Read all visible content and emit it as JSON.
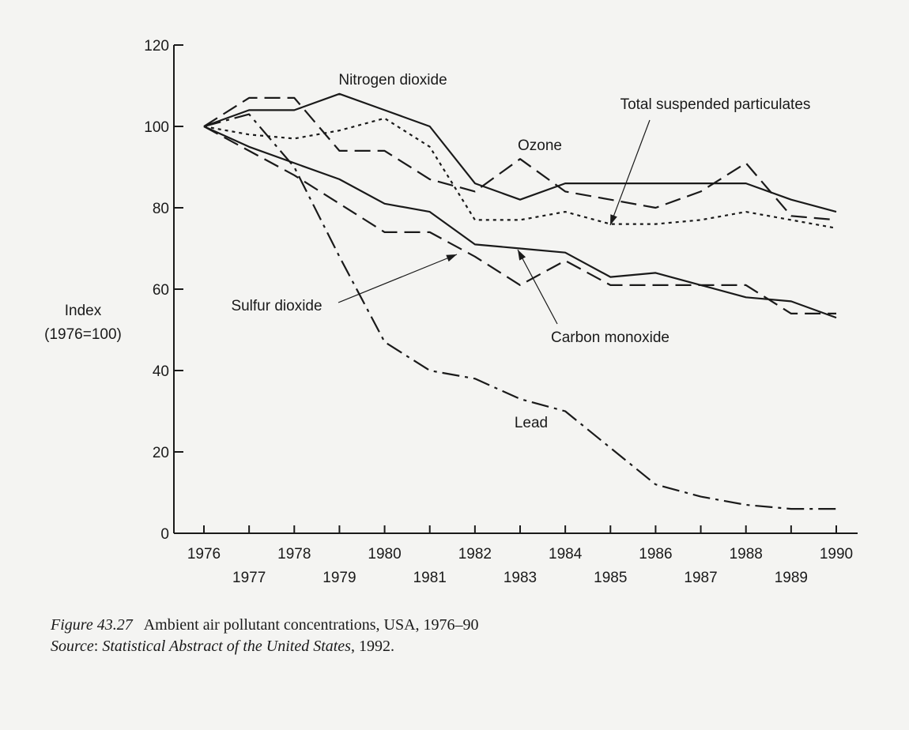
{
  "chart_data": {
    "type": "line",
    "ylabel": [
      "Index",
      "(1976=100)"
    ],
    "ylim": [
      0,
      120
    ],
    "yticks": [
      0,
      20,
      40,
      60,
      80,
      100,
      120
    ],
    "xlim": [
      1976,
      1990
    ],
    "x": [
      1976,
      1977,
      1978,
      1979,
      1980,
      1981,
      1982,
      1983,
      1984,
      1985,
      1986,
      1987,
      1988,
      1989,
      1990
    ],
    "xticks_upper": [
      "1976",
      "1978",
      "1980",
      "1982",
      "1984",
      "1986",
      "1988",
      "1990"
    ],
    "xticks_lower": [
      "1977",
      "1979",
      "1981",
      "1983",
      "1985",
      "1987",
      "1989"
    ],
    "grid": false,
    "series": [
      {
        "name": "Nitrogen dioxide",
        "style": "solid",
        "values": [
          100,
          104,
          104,
          108,
          104,
          100,
          86,
          82,
          86,
          86,
          86,
          86,
          86,
          82,
          79
        ]
      },
      {
        "name": "Total suspended particulates",
        "style": "dotted",
        "values": [
          100,
          98,
          97,
          99,
          102,
          95,
          77,
          77,
          79,
          76,
          76,
          77,
          79,
          77,
          75
        ]
      },
      {
        "name": "Ozone",
        "style": "dashed",
        "values": [
          100,
          107,
          107,
          94,
          94,
          87,
          84,
          92,
          84,
          82,
          80,
          84,
          91,
          78,
          77
        ]
      },
      {
        "name": "Sulfur dioxide",
        "style": "dashed",
        "values": [
          100,
          94,
          88,
          81,
          74,
          74,
          68,
          61,
          67,
          61,
          61,
          61,
          61,
          54,
          54
        ]
      },
      {
        "name": "Carbon monoxide",
        "style": "solid",
        "values": [
          100,
          95,
          91,
          87,
          81,
          79,
          71,
          70,
          69,
          63,
          64,
          61,
          58,
          57,
          53
        ]
      },
      {
        "name": "Lead",
        "style": "dashdot",
        "values": [
          100,
          103,
          90,
          68,
          47,
          40,
          38,
          33,
          30,
          21,
          12,
          9,
          7,
          6,
          6
        ]
      }
    ]
  },
  "caption": {
    "figure_number": "Figure 43.27",
    "figure_title": "Ambient air pollutant concentrations, USA, 1976–90",
    "source_label": "Source",
    "source_title": "Statistical Abstract of the United States",
    "source_year": ", 1992."
  }
}
